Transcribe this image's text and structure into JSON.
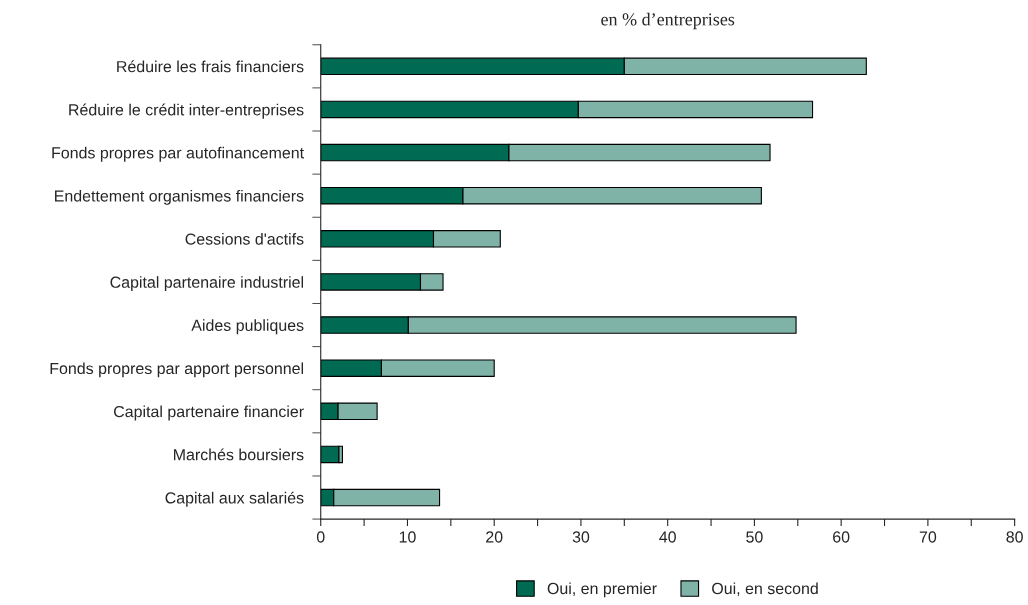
{
  "chart_data": {
    "type": "bar",
    "orientation": "horizontal",
    "stacked": true,
    "title": "en % d’entreprises",
    "categories": [
      "Réduire les frais financiers",
      "Réduire le crédit inter-entreprises",
      "Fonds propres par autofinancement",
      "Endettement organismes financiers",
      "Cessions d'actifs",
      "Capital partenaire industriel",
      "Aides publiques",
      "Fonds propres par apport personnel",
      "Capital partenaire financier",
      "Marchés boursiers",
      "Capital aux salariés"
    ],
    "series": [
      {
        "name": "Oui, en premier",
        "color": "#006a52",
        "values": [
          35.0,
          29.7,
          21.7,
          16.4,
          13.0,
          11.5,
          10.1,
          7.0,
          2.0,
          2.1,
          1.5
        ]
      },
      {
        "name": "Oui, en second",
        "color": "#80b3a8",
        "values": [
          27.9,
          27.0,
          30.1,
          34.4,
          7.7,
          2.6,
          44.7,
          13.0,
          4.5,
          0.4,
          12.2
        ]
      }
    ],
    "xlim": [
      0,
      80
    ],
    "xticks": [
      0,
      {
        "value": 5,
        "label": null
      },
      10,
      {
        "value": 15,
        "label": null
      },
      20,
      {
        "value": 25,
        "label": null
      },
      30,
      {
        "value": 35,
        "label": null
      },
      40,
      {
        "value": 45,
        "label": null
      },
      50,
      {
        "value": 55,
        "label": null
      },
      60,
      {
        "value": 65,
        "label": null
      },
      70,
      {
        "value": 75,
        "label": null
      },
      80
    ],
    "grid": false,
    "legend": "bottom"
  }
}
